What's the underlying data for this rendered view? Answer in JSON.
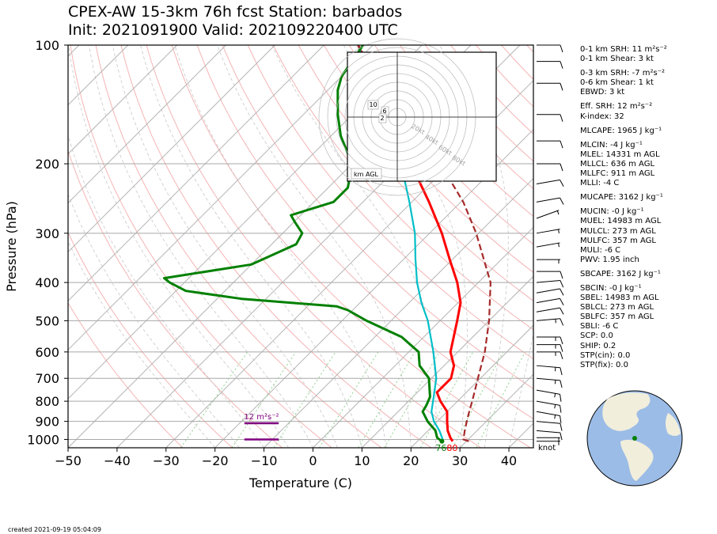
{
  "title": {
    "line1": "CPEX-AW 15-3km  76h fcst  Station: barbados",
    "line2": "Init: 2021091900  Valid: 202109220400 UTC"
  },
  "chart_data": {
    "type": "line",
    "subtype": "skew-T log-P sounding",
    "xlabel": "Temperature (C)",
    "ylabel": "Pressure (hPa)",
    "xlim": [
      -50,
      45
    ],
    "ylim": [
      1050,
      100
    ],
    "y_scale": "log",
    "x_ticks": [
      "−50",
      "−40",
      "−30",
      "−20",
      "−10",
      "0",
      "10",
      "20",
      "30",
      "40"
    ],
    "x_tick_values": [
      -50,
      -40,
      -30,
      -20,
      -10,
      0,
      10,
      20,
      30,
      40
    ],
    "y_ticks": [
      "100",
      "200",
      "300",
      "400",
      "500",
      "600",
      "700",
      "800",
      "900",
      "1000"
    ],
    "y_tick_values": [
      100,
      200,
      300,
      400,
      500,
      600,
      700,
      800,
      900,
      1000
    ],
    "grid": true,
    "colors": {
      "temperature": "#ff0000",
      "dewpoint": "#008000",
      "wetbulb": "#00bfc8",
      "parcel": "#a52a2a",
      "isotherm": "#b4b4b4",
      "dry_adiabat": "#f5b4b4",
      "moist_adiabat": "#c8c8c8",
      "mixing_ratio": "#8fd18f",
      "helicity": "#800080"
    },
    "series": [
      {
        "name": "",
        "role": "temperature",
        "pressure": [
          1011,
          990,
          950,
          900,
          850,
          800,
          760,
          700,
          650,
          600,
          500,
          450,
          400,
          350,
          300,
          250,
          200,
          150,
          120,
          100
        ],
        "temperature": [
          27.2,
          26.0,
          24.0,
          22.0,
          20.0,
          16.5,
          14.0,
          14.0,
          12.0,
          8.5,
          3.5,
          0.5,
          -4.3,
          -10.5,
          -17.5,
          -26.5,
          -38.0,
          -53.5,
          -64.0,
          -73.0
        ]
      },
      {
        "name": "",
        "role": "wetbulb",
        "pressure": [
          1011,
          990,
          950,
          900,
          850,
          800,
          700,
          600,
          500,
          450,
          400,
          350,
          300,
          250,
          200,
          150,
          120,
          100
        ],
        "temperature": [
          25.3,
          24.3,
          22.3,
          19.3,
          16.8,
          15.0,
          11.0,
          5.0,
          -2.5,
          -7.5,
          -12.5,
          -17.5,
          -23.0,
          -30.5,
          -40.0,
          -54.0,
          -64.0,
          -73.0
        ]
      },
      {
        "name": "",
        "role": "dewpoint",
        "pressure": [
          1011,
          990,
          950,
          900,
          850,
          820,
          780,
          700,
          650,
          600,
          550,
          500,
          470,
          460,
          440,
          420,
          400,
          390,
          360,
          320,
          300,
          280,
          270,
          250,
          230,
          200,
          170,
          150,
          130,
          120,
          100
        ],
        "temperature": [
          25.0,
          23.3,
          21.5,
          18.0,
          15.0,
          14.5,
          13.5,
          9.5,
          5.0,
          2.0,
          -4.5,
          -15.0,
          -21.0,
          -24.0,
          -45.0,
          -58.0,
          -63.0,
          -65.0,
          -50.0,
          -45.0,
          -46.0,
          -50.0,
          -52.0,
          -46.0,
          -46.0,
          -50.0,
          -58.0,
          -63.0,
          -68.0,
          -70.0,
          -72.0
        ]
      },
      {
        "name": "",
        "role": "parcel",
        "pressure": [
          1011,
          1000,
          950,
          900,
          850,
          800,
          700,
          600,
          500,
          400,
          300,
          250,
          200,
          150,
          120,
          100
        ],
        "temperature": [
          30.5,
          29.0,
          27.5,
          26.0,
          24.5,
          23.0,
          19.5,
          15.5,
          10.0,
          2.5,
          -10.5,
          -19.5,
          -32.0,
          -50.0,
          -63.0,
          -73.0
        ]
      }
    ],
    "surface_labels": {
      "dewpoint": "76",
      "temperature": "80"
    },
    "helicity_bars": [
      {
        "label": "12 m²s⁻²",
        "pressure": 910,
        "temp_from": -14,
        "temp_to": -7
      },
      {
        "label": "",
        "pressure": 1000,
        "temp_from": -14,
        "temp_to": -7
      }
    ],
    "wind_barbs": {
      "units_label": "knot",
      "pressures": [
        1011,
        990,
        950,
        900,
        850,
        800,
        750,
        700,
        650,
        600,
        575,
        550,
        500,
        475,
        450,
        425,
        400,
        375,
        350,
        325,
        300,
        275,
        250,
        225,
        200,
        175,
        150,
        125,
        110,
        100
      ],
      "speeds_kt": [
        5,
        5,
        10,
        10,
        15,
        15,
        15,
        15,
        15,
        15,
        15,
        15,
        15,
        10,
        10,
        10,
        10,
        10,
        5,
        5,
        5,
        5,
        10,
        10,
        10,
        10,
        10,
        10,
        10,
        10
      ],
      "directions_deg": [
        90,
        90,
        95,
        95,
        100,
        100,
        100,
        95,
        95,
        90,
        90,
        90,
        85,
        80,
        80,
        80,
        85,
        90,
        90,
        80,
        80,
        70,
        80,
        80,
        90,
        90,
        90,
        90,
        90,
        90
      ]
    },
    "hodograph": {
      "rings": [
        "20kt",
        "40kt",
        "60kt",
        "80kt"
      ],
      "label": "km AGL",
      "markers": [
        "10",
        "6",
        "2"
      ]
    }
  },
  "indices": [
    {
      "label": "0-1 km SRH: 11 m²s⁻²",
      "gap": false
    },
    {
      "label": "0-1 km Shear: 3 kt",
      "gap": false
    },
    {
      "label": "0-3 km SRH: -7 m²s⁻²",
      "gap": true
    },
    {
      "label": "0-6 km Shear: 1 kt",
      "gap": false
    },
    {
      "label": "EBWD: 3 kt",
      "gap": false
    },
    {
      "label": "Eff. SRH: 12 m²s⁻²",
      "gap": true
    },
    {
      "label": "K-index: 32",
      "gap": false
    },
    {
      "label": "MLCAPE: 1965 J kg⁻¹",
      "gap": true
    },
    {
      "label": "MLCIN: -4 J kg⁻¹",
      "gap": true
    },
    {
      "label": "MLEL: 14331 m AGL",
      "gap": false
    },
    {
      "label": "MLLCL: 636 m AGL",
      "gap": false
    },
    {
      "label": "MLLFC: 911 m AGL",
      "gap": false
    },
    {
      "label": "MLLI: -4 C",
      "gap": false
    },
    {
      "label": "MUCAPE: 3162 J kg⁻¹",
      "gap": true
    },
    {
      "label": "MUCIN: -0 J kg⁻¹",
      "gap": true
    },
    {
      "label": "MUEL: 14983 m AGL",
      "gap": false
    },
    {
      "label": "MULCL: 273 m AGL",
      "gap": false
    },
    {
      "label": "MULFC: 357 m AGL",
      "gap": false
    },
    {
      "label": "MULI: -6 C",
      "gap": false
    },
    {
      "label": "PWV: 1.95 inch",
      "gap": false
    },
    {
      "label": "SBCAPE: 3162 J kg⁻¹",
      "gap": true
    },
    {
      "label": "SBCIN: -0 J kg⁻¹",
      "gap": true
    },
    {
      "label": "SBEL: 14983 m AGL",
      "gap": false
    },
    {
      "label": "SBLCL: 273 m AGL",
      "gap": false
    },
    {
      "label": "SBLFC: 357 m AGL",
      "gap": false
    },
    {
      "label": "SBLI: -6 C",
      "gap": false
    },
    {
      "label": "SCP: 0.0",
      "gap": false
    },
    {
      "label": "SHIP: 0.2",
      "gap": false
    },
    {
      "label": "STP(cin): 0.0",
      "gap": false
    },
    {
      "label": "STP(fix): 0.0",
      "gap": false
    }
  ],
  "globe": {
    "ocean_color": "#9bbce6",
    "land_color": "#f1eedc",
    "marker_color": "#008000"
  },
  "created": "created 2021-09-19 05:04:09"
}
